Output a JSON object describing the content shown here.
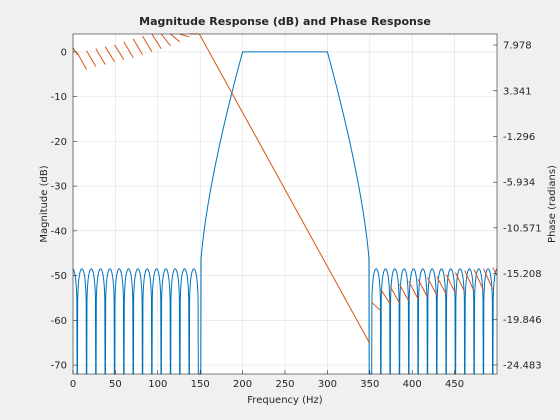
{
  "chart_data": {
    "type": "line",
    "title": "Magnitude Response (dB) and Phase Response",
    "xlabel": "Frequency (Hz)",
    "ylabel": "Magnitude (dB)",
    "ylabel_right": "Phase (radians)",
    "xlim": [
      0,
      500
    ],
    "ylim": [
      -72,
      4
    ],
    "ylim_right": [
      -25.4,
      9.1
    ],
    "grid": true,
    "x_ticks": [
      "0",
      "50",
      "100",
      "150",
      "200",
      "250",
      "300",
      "350",
      "400",
      "450"
    ],
    "y_ticks": [
      "0",
      "-10",
      "-20",
      "-30",
      "-40",
      "-50",
      "-60",
      "-70"
    ],
    "y_ticks_right": [
      "7.978",
      "3.341",
      "-1.296",
      "-5.934",
      "-10.571",
      "-15.208",
      "-19.846",
      "-24.483"
    ],
    "colors": {
      "magnitude": "#0072bd",
      "phase": "#d95319",
      "grid": "#dfdfdf"
    },
    "series": [
      {
        "axis": "left",
        "color": "#0072bd",
        "passband": [
          200,
          300
        ],
        "transition_bands": [
          [
            150,
            200
          ],
          [
            300,
            350
          ]
        ],
        "passband_level_db": 0,
        "stopband_peak_db": -48.5,
        "stopband_null_spacing_hz": 11,
        "lower_stopband_null_frequencies": [
          5,
          16,
          27,
          38,
          49,
          60,
          71,
          82,
          93,
          104,
          115,
          126,
          137
        ],
        "upper_stopband_null_frequencies": [
          363,
          374,
          385,
          396,
          407,
          418,
          429,
          440,
          451,
          462,
          473,
          484,
          495
        ],
        "min_db": -72
      },
      {
        "axis": "right",
        "color": "#d95319",
        "segments": [
          {
            "x": [
              0,
              5
            ],
            "y": [
              7.7,
              7.0
            ]
          },
          {
            "x": [
              5,
              16
            ],
            "y": [
              7.2,
              5.5
            ]
          },
          {
            "x": [
              16,
              27
            ],
            "y": [
              7.4,
              5.8
            ]
          },
          {
            "x": [
              27,
              38
            ],
            "y": [
              7.6,
              6.0
            ]
          },
          {
            "x": [
              38,
              49
            ],
            "y": [
              7.8,
              6.3
            ]
          },
          {
            "x": [
              49,
              60
            ],
            "y": [
              8.0,
              6.5
            ]
          },
          {
            "x": [
              60,
              71
            ],
            "y": [
              8.3,
              6.7
            ]
          },
          {
            "x": [
              71,
              82
            ],
            "y": [
              8.6,
              7.0
            ]
          },
          {
            "x": [
              82,
              93
            ],
            "y": [
              8.9,
              7.3
            ]
          },
          {
            "x": [
              93,
              104
            ],
            "y": [
              9.2,
              7.6
            ]
          },
          {
            "x": [
              104,
              115
            ],
            "y": [
              9.6,
              7.9
            ]
          },
          {
            "x": [
              115,
              126
            ],
            "y": [
              10.1,
              8.3
            ]
          },
          {
            "x": [
              126,
              137
            ],
            "y": [
              10.7,
              8.8
            ]
          },
          {
            "x": [
              137,
              148
            ],
            "y": [
              11.4,
              9.4
            ]
          },
          {
            "x": [
              149,
              350
            ],
            "y": [
              12.5,
              -22.3
            ]
          },
          {
            "x": [
              352,
              363
            ],
            "y": [
              -18.1,
              -19.0
            ]
          },
          {
            "x": [
              363,
              374
            ],
            "y": [
              -16.8,
              -18.3
            ]
          },
          {
            "x": [
              374,
              385
            ],
            "y": [
              -16.5,
              -18.2
            ]
          },
          {
            "x": [
              385,
              396
            ],
            "y": [
              -16.3,
              -18.0
            ]
          },
          {
            "x": [
              396,
              407
            ],
            "y": [
              -16.0,
              -17.8
            ]
          },
          {
            "x": [
              407,
              418
            ],
            "y": [
              -15.8,
              -17.6
            ]
          },
          {
            "x": [
              418,
              429
            ],
            "y": [
              -15.6,
              -17.4
            ]
          },
          {
            "x": [
              429,
              440
            ],
            "y": [
              -15.5,
              -17.3
            ]
          },
          {
            "x": [
              440,
              451
            ],
            "y": [
              -15.3,
              -17.2
            ]
          },
          {
            "x": [
              451,
              462
            ],
            "y": [
              -15.1,
              -17.1
            ]
          },
          {
            "x": [
              462,
              473
            ],
            "y": [
              -14.9,
              -17.0
            ]
          },
          {
            "x": [
              473,
              484
            ],
            "y": [
              -14.8,
              -16.9
            ]
          },
          {
            "x": [
              484,
              495
            ],
            "y": [
              -14.7,
              -16.8
            ]
          },
          {
            "x": [
              495,
              500
            ],
            "y": [
              -14.6,
              -15.4
            ]
          }
        ]
      }
    ]
  }
}
